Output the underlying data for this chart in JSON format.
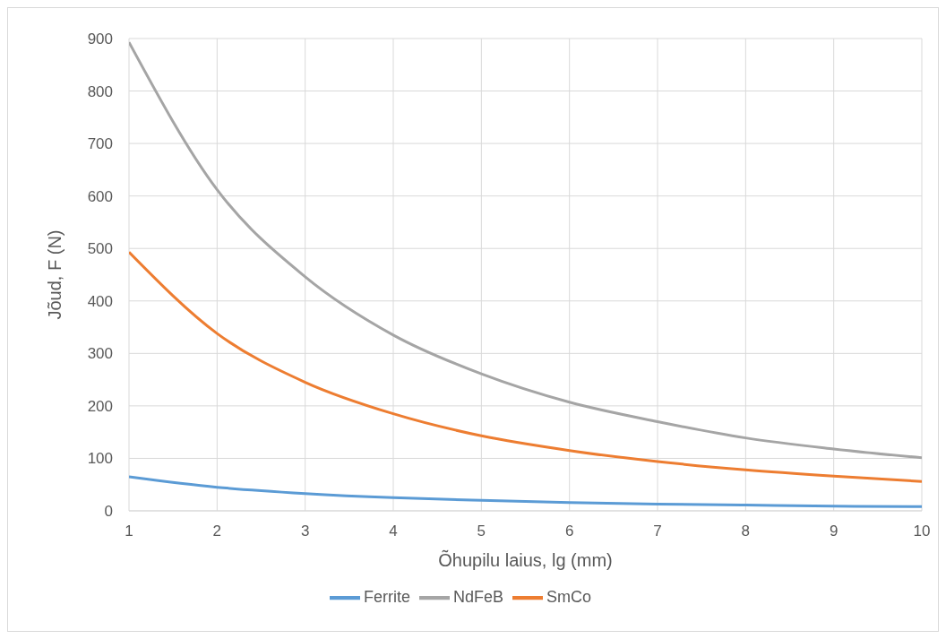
{
  "chart_data": {
    "type": "line",
    "xlabel": "Õhupilu laius, lg (mm)",
    "ylabel": "Jõud, F (N)",
    "x": [
      1,
      2,
      3,
      4,
      5,
      6,
      7,
      8,
      9,
      10
    ],
    "series": [
      {
        "name": "Ferrite",
        "color": "#5b9bd5",
        "values": [
          65,
          45,
          33,
          25,
          20,
          16,
          13,
          11,
          9,
          8
        ]
      },
      {
        "name": "SmCo",
        "color": "#ed7d31",
        "values": [
          493,
          338,
          245,
          185,
          143,
          115,
          94,
          78,
          66,
          56
        ]
      },
      {
        "name": "NdFeB",
        "color": "#a5a5a5",
        "values": [
          893,
          612,
          446,
          335,
          261,
          207,
          170,
          139,
          118,
          101
        ]
      }
    ],
    "xlim": [
      1,
      10
    ],
    "xticks": [
      1,
      2,
      3,
      4,
      5,
      6,
      7,
      8,
      9,
      10
    ],
    "ylim": [
      0,
      900
    ],
    "yticks": [
      0,
      100,
      200,
      300,
      400,
      500,
      600,
      700,
      800,
      900
    ],
    "grid": true,
    "legend": "bottom",
    "marker": "none",
    "line_style": "solid"
  }
}
